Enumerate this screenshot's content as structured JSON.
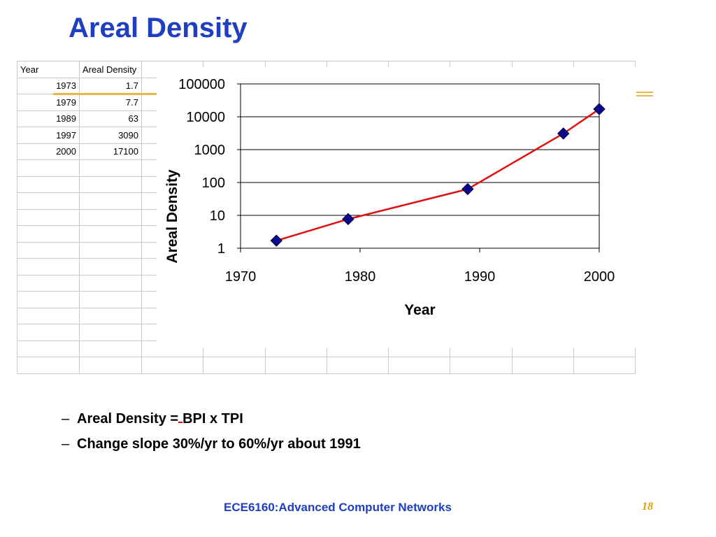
{
  "slide": {
    "title": "Areal Density",
    "bullets": [
      {
        "before": "Areal Density =",
        "after": "BPI x TPI"
      },
      {
        "text": "Change slope 30%/yr to 60%/yr about 1991"
      }
    ],
    "footer": "ECE6160:Advanced Computer Networks",
    "page_number": "18"
  },
  "table": {
    "headers": [
      "Year",
      "Areal Density"
    ],
    "rows": [
      [
        "1973",
        "1.7"
      ],
      [
        "1979",
        "7.7"
      ],
      [
        "1989",
        "63"
      ],
      [
        "1997",
        "3090"
      ],
      [
        "2000",
        "17100"
      ]
    ]
  },
  "chart_data": {
    "type": "line",
    "x": [
      1973,
      1979,
      1989,
      1997,
      2000
    ],
    "series": [
      {
        "values": [
          1.7,
          7.7,
          63,
          3090,
          17100
        ],
        "line_color": "#e01010",
        "marker_color": "#0a0a8a",
        "marker": "diamond"
      }
    ],
    "xlabel": "Year",
    "ylabel": "Areal Density",
    "xlim": [
      1970,
      2000
    ],
    "ylim": [
      1,
      100000
    ],
    "yscale": "log",
    "x_ticks": [
      "1970",
      "1980",
      "1990",
      "2000"
    ],
    "y_ticks": [
      "1",
      "10",
      "100",
      "1000",
      "10000",
      "100000"
    ],
    "grid": "horizontal"
  }
}
